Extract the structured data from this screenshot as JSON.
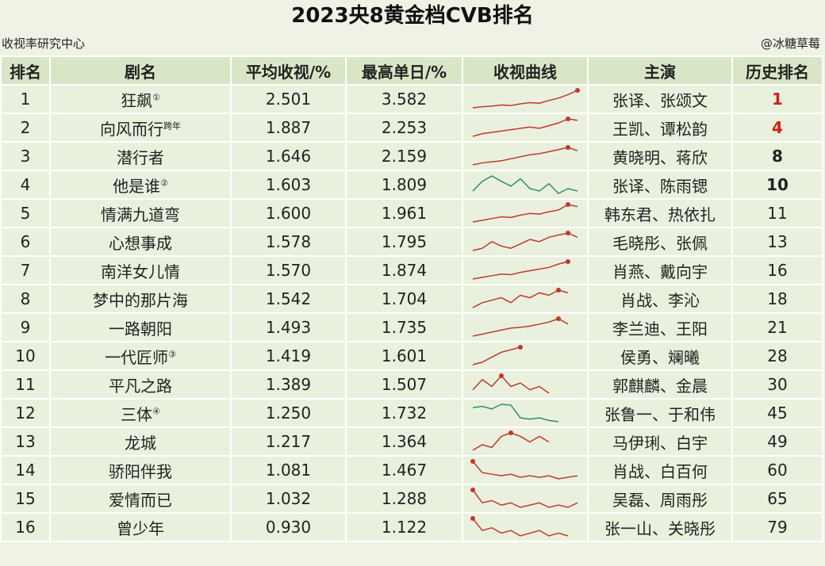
{
  "header": {
    "title": "2023央8黄金档CVB排名",
    "source": "收视率研究中心",
    "credit": "@冰糖草莓"
  },
  "table": {
    "columns": [
      "排名",
      "剧名",
      "平均收视/%",
      "最高单日/%",
      "收视曲线",
      "主演",
      "历史排名"
    ],
    "rows": [
      {
        "rank": "1",
        "name": "狂飙",
        "note": "①",
        "avg": "2.501",
        "max": "3.582",
        "curve_color": "#c0392b",
        "curve": [
          2.05,
          2.15,
          2.2,
          2.3,
          2.25,
          2.4,
          2.5,
          2.45,
          2.7,
          2.9,
          3.2,
          3.582
        ],
        "cast": "张译、张颂文",
        "history": "1"
      },
      {
        "rank": "2",
        "name": "向风而行",
        "note": "跨年",
        "avg": "1.887",
        "max": "2.253",
        "curve_color": "#c0392b",
        "curve": [
          1.6,
          1.7,
          1.75,
          1.8,
          1.85,
          1.9,
          1.95,
          1.9,
          2.0,
          2.1,
          2.253,
          2.2
        ],
        "cast": "王凯、谭松韵",
        "history": "4"
      },
      {
        "rank": "3",
        "name": "潜行者",
        "note": "",
        "avg": "1.646",
        "max": "2.159",
        "curve_color": "#c0392b",
        "curve": [
          1.3,
          1.4,
          1.45,
          1.5,
          1.6,
          1.7,
          1.8,
          1.85,
          1.95,
          2.05,
          2.159,
          2.0
        ],
        "cast": "黄晓明、蒋欣",
        "history": "8"
      },
      {
        "rank": "4",
        "name": "他是谁",
        "note": "②",
        "avg": "1.603",
        "max": "1.809",
        "curve_color": "#2e8b6e",
        "curve": [
          1.5,
          1.7,
          1.809,
          1.7,
          1.6,
          1.75,
          1.55,
          1.5,
          1.65,
          1.45,
          1.55,
          1.5
        ],
        "cast": "张译、陈雨锶",
        "history": "10"
      },
      {
        "rank": "5",
        "name": "情满九道弯",
        "note": "",
        "avg": "1.600",
        "max": "1.961",
        "curve_color": "#c0392b",
        "curve": [
          1.45,
          1.5,
          1.55,
          1.6,
          1.58,
          1.65,
          1.7,
          1.68,
          1.75,
          1.8,
          1.961,
          1.9
        ],
        "cast": "韩东君、热依扎",
        "history": "11"
      },
      {
        "rank": "6",
        "name": "心想事成",
        "note": "",
        "avg": "1.578",
        "max": "1.795",
        "curve_color": "#c0392b",
        "curve": [
          1.4,
          1.45,
          1.6,
          1.5,
          1.45,
          1.55,
          1.65,
          1.6,
          1.7,
          1.75,
          1.795,
          1.7
        ],
        "cast": "毛晓彤、张佩",
        "history": "13"
      },
      {
        "rank": "7",
        "name": "南洋女儿情",
        "note": "",
        "avg": "1.570",
        "max": "1.874",
        "curve_color": "#c0392b",
        "curve": [
          1.35,
          1.4,
          1.45,
          1.5,
          1.48,
          1.55,
          1.6,
          1.65,
          1.7,
          1.8,
          1.874
        ],
        "cast": "肖燕、戴向宇",
        "history": "16"
      },
      {
        "rank": "8",
        "name": "梦中的那片海",
        "note": "",
        "avg": "1.542",
        "max": "1.704",
        "curve_color": "#c0392b",
        "curve": [
          1.35,
          1.45,
          1.5,
          1.55,
          1.45,
          1.6,
          1.55,
          1.65,
          1.6,
          1.704,
          1.65
        ],
        "cast": "肖战、李沁",
        "history": "18"
      },
      {
        "rank": "9",
        "name": "一路朝阳",
        "note": "",
        "avg": "1.493",
        "max": "1.735",
        "curve_color": "#c0392b",
        "curve": [
          1.3,
          1.35,
          1.4,
          1.45,
          1.5,
          1.52,
          1.55,
          1.6,
          1.65,
          1.735,
          1.6
        ],
        "cast": "李兰迪、王阳",
        "history": "21"
      },
      {
        "rank": "10",
        "name": "一代匠师",
        "note": "③",
        "avg": "1.419",
        "max": "1.601",
        "curve_color": "#c0392b",
        "curve": [
          1.25,
          1.3,
          1.4,
          1.5,
          1.55,
          1.601
        ],
        "cast": "侯勇、斓曦",
        "history": "28"
      },
      {
        "rank": "11",
        "name": "平凡之路",
        "note": "",
        "avg": "1.389",
        "max": "1.507",
        "curve_color": "#c0392b",
        "curve": [
          1.3,
          1.45,
          1.35,
          1.507,
          1.35,
          1.4,
          1.3,
          1.35,
          1.25
        ],
        "cast": "郭麒麟、金晨",
        "history": "30"
      },
      {
        "rank": "12",
        "name": "三体",
        "note": "④",
        "avg": "1.250",
        "max": "1.732",
        "curve_color": "#2e8b6e",
        "curve": [
          1.6,
          1.65,
          1.55,
          1.732,
          1.7,
          1.2,
          1.15,
          1.2,
          1.1,
          1.05
        ],
        "cast": "张鲁一、于和伟",
        "history": "45"
      },
      {
        "rank": "13",
        "name": "龙城",
        "note": "",
        "avg": "1.217",
        "max": "1.364",
        "curve_color": "#c0392b",
        "curve": [
          1.05,
          1.15,
          1.1,
          1.3,
          1.364,
          1.3,
          1.2,
          1.3,
          1.2
        ],
        "cast": "马伊琍、白宇",
        "history": "49"
      },
      {
        "rank": "14",
        "name": "骄阳伴我",
        "note": "",
        "avg": "1.081",
        "max": "1.467",
        "curve_color": "#c0392b",
        "curve": [
          1.467,
          1.1,
          1.05,
          1.0,
          1.05,
          0.95,
          1.0,
          0.95,
          1.0,
          0.9,
          0.95,
          1.0
        ],
        "cast": "肖战、白百何",
        "history": "60"
      },
      {
        "rank": "15",
        "name": "爱情而已",
        "note": "",
        "avg": "1.032",
        "max": "1.288",
        "curve_color": "#c0392b",
        "curve": [
          1.288,
          1.0,
          1.05,
          0.95,
          1.0,
          0.9,
          0.95,
          1.0,
          0.9,
          0.95,
          0.9,
          1.0
        ],
        "cast": "吴磊、周雨彤",
        "history": "65"
      },
      {
        "rank": "16",
        "name": "曾少年",
        "note": "",
        "avg": "0.930",
        "max": "1.122",
        "curve_color": "#c0392b",
        "curve": [
          1.122,
          0.9,
          0.95,
          0.85,
          0.9,
          0.8,
          0.85,
          0.9,
          0.8,
          0.85,
          0.8
        ],
        "cast": "张一山、关晓彤",
        "history": "79"
      }
    ]
  }
}
